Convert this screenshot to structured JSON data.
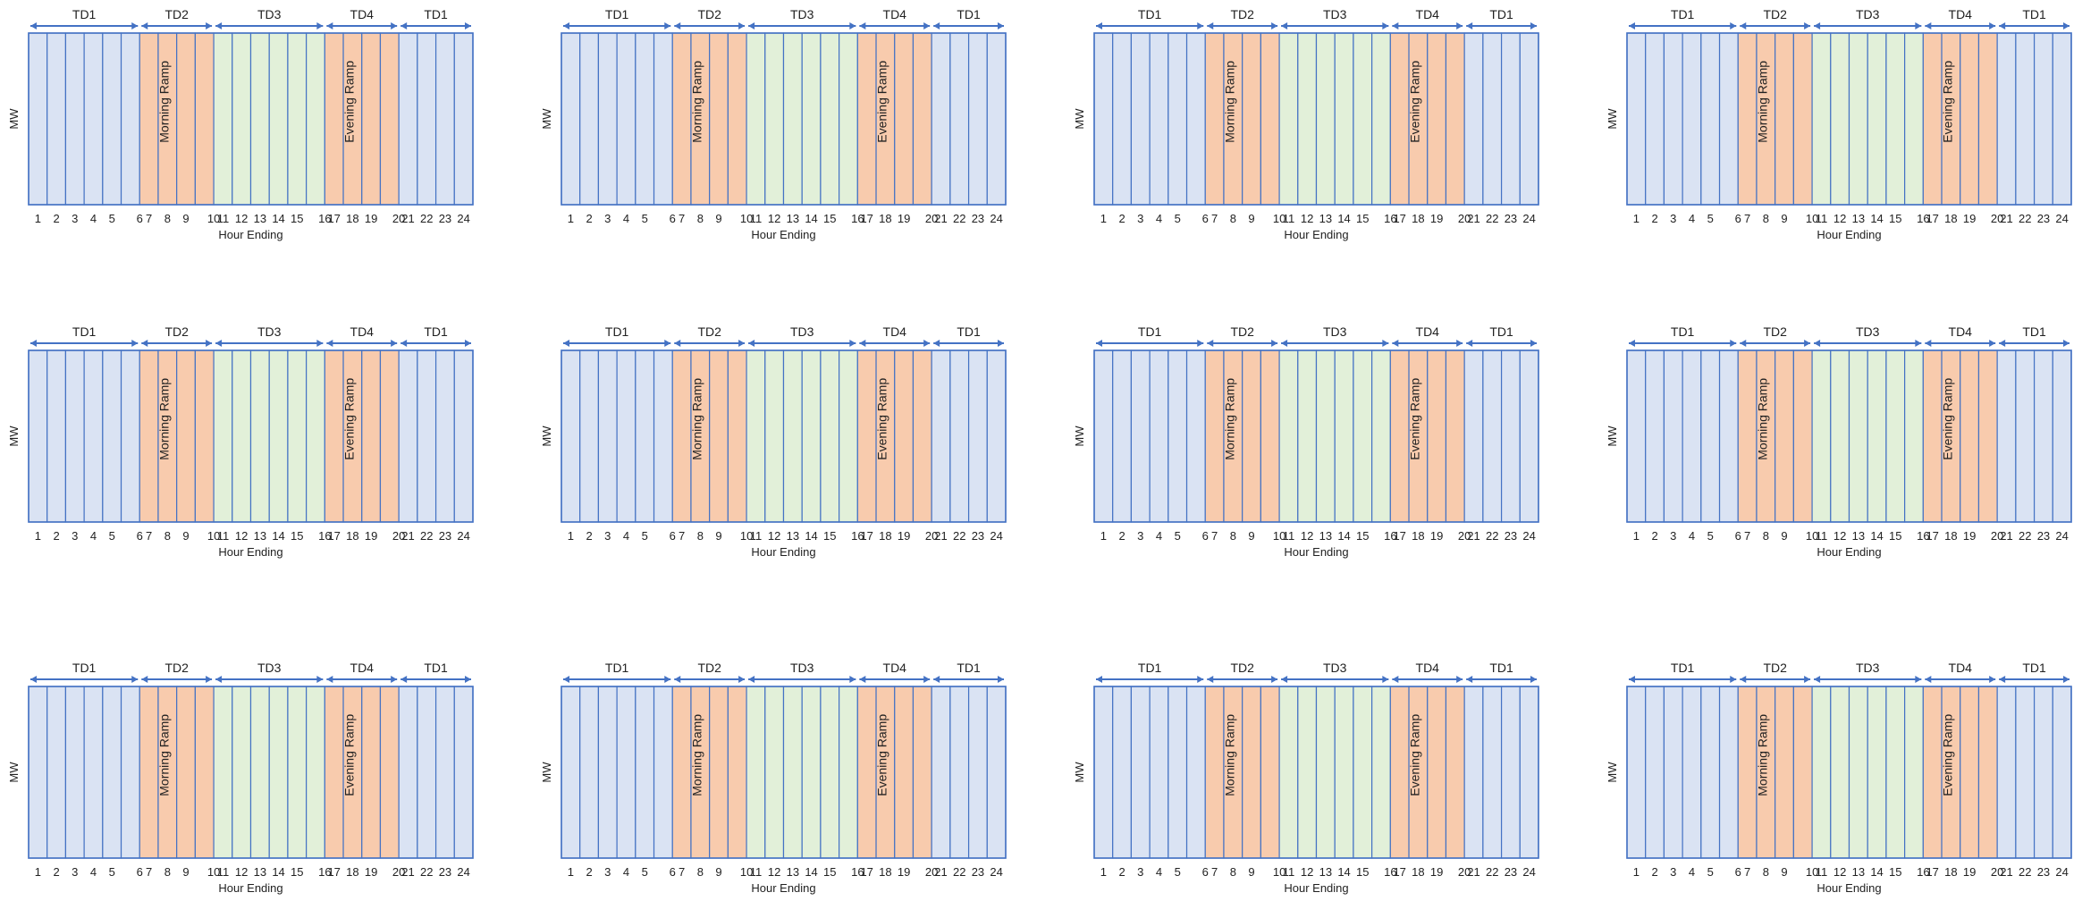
{
  "diagram": {
    "panel_count": 12,
    "rows": 3,
    "cols": 4,
    "hours": [
      "1",
      "2",
      "3",
      "4",
      "5",
      "6",
      "7",
      "8",
      "9",
      "10",
      "11",
      "12",
      "13",
      "14",
      "15",
      "16",
      "17",
      "18",
      "19",
      "20",
      "21",
      "22",
      "23",
      "24"
    ],
    "boundary_labels": [
      "6",
      "10",
      "16",
      "20"
    ],
    "periods": [
      {
        "name": "TD1",
        "start": 1,
        "end": 6,
        "color": "#dae3f3"
      },
      {
        "name": "TD2",
        "start": 7,
        "end": 10,
        "color": "#f8cbad"
      },
      {
        "name": "TD3",
        "start": 11,
        "end": 16,
        "color": "#e2f0d9"
      },
      {
        "name": "TD4",
        "start": 17,
        "end": 20,
        "color": "#f8cbad"
      },
      {
        "name": "TD1",
        "start": 21,
        "end": 24,
        "color": "#dae3f3"
      }
    ],
    "ramps": [
      {
        "label": "Morning Ramp",
        "start": 7,
        "end": 10
      },
      {
        "label": "Evening Ramp",
        "start": 17,
        "end": 20
      }
    ],
    "y_label": "MW",
    "x_label": "Hour Ending",
    "border_color": "#4472c4",
    "arrow_color": "#4472c4",
    "text_color": "#222222"
  }
}
